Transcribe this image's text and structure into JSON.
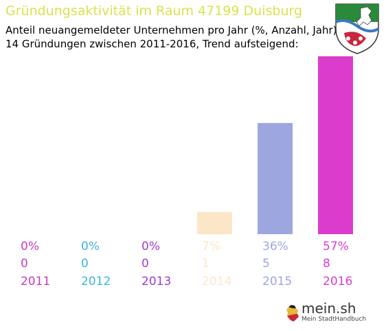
{
  "header": {
    "title": "Gründungsaktivität im Raum 47199 Duisburg",
    "subtitle1": "Anteil neuangemeldeter Unternehmen pro Jahr (%, Anzahl, Jahr)",
    "subtitle2": "14 Gründungen zwischen 2011-2016, Trend aufsteigend:",
    "title_color": "#d7e44c"
  },
  "chart_data": {
    "type": "bar",
    "categories": [
      "2011",
      "2012",
      "2013",
      "2014",
      "2015",
      "2016"
    ],
    "percent_labels": [
      "0%",
      "0%",
      "0%",
      "7%",
      "36%",
      "57%"
    ],
    "values": [
      0,
      0,
      0,
      1,
      5,
      8
    ],
    "colors": [
      "#c83cbc",
      "#3cb4dc",
      "#a03cc8",
      "#fce6c8",
      "#9ea6e0",
      "#dc3ccc"
    ],
    "title": "Gründungsaktivität im Raum 47199 Duisburg",
    "ylim": [
      0,
      8
    ]
  },
  "logo": {
    "wordmark": "mein.sh",
    "tagline": "Mein StadtHandbuch",
    "crest_icon": "nrw-coat-of-arms-icon",
    "map_icon": "germany-map-icon"
  }
}
